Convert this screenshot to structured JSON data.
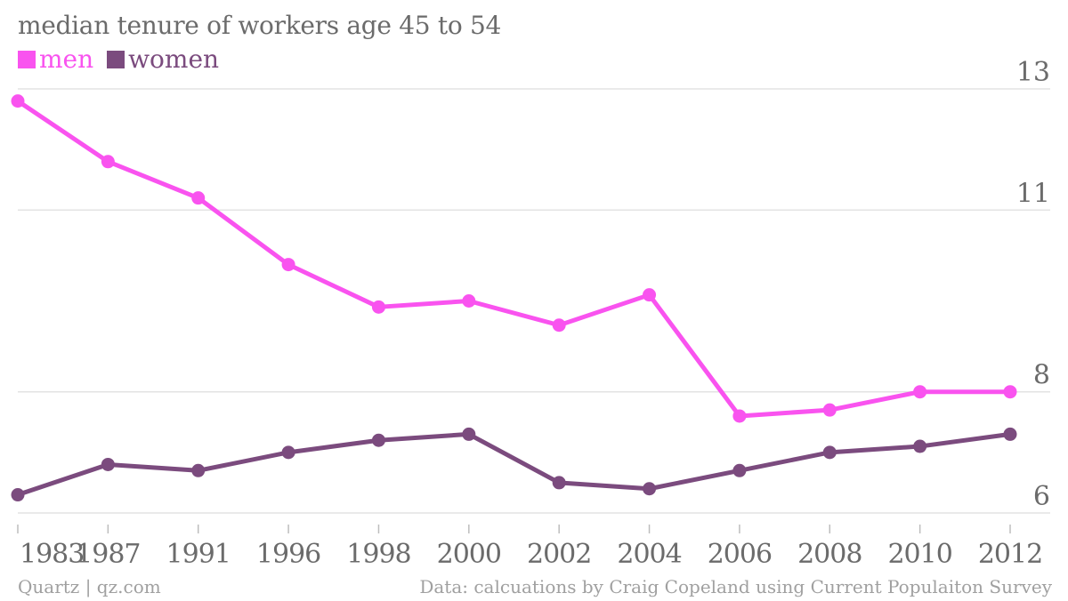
{
  "chart_data": {
    "type": "line",
    "title": "median tenure of workers age 45 to 54",
    "categories": [
      "1983",
      "1987",
      "1991",
      "1996",
      "1998",
      "2000",
      "2002",
      "2004",
      "2006",
      "2008",
      "2010",
      "2012"
    ],
    "series": [
      {
        "name": "men",
        "color": "#f953ef",
        "values": [
          12.8,
          11.8,
          11.2,
          10.1,
          9.4,
          9.5,
          9.1,
          9.6,
          7.6,
          7.7,
          8.0,
          8.0
        ]
      },
      {
        "name": "women",
        "color": "#7b4b7e",
        "values": [
          6.3,
          6.8,
          6.7,
          7.0,
          7.2,
          7.3,
          6.5,
          6.4,
          6.7,
          7.0,
          7.1,
          7.3
        ]
      }
    ],
    "y_ticks": [
      "13",
      "11",
      "8",
      "6"
    ],
    "ylim": [
      6,
      13
    ],
    "y_axis_position": "right",
    "legend_placement": "top-left",
    "grid": true,
    "xlabel": "",
    "ylabel": ""
  },
  "footer": {
    "left": "Quartz | qz.com",
    "right": "Data: calcuations by Craig Copeland using Current Populaiton Survey"
  }
}
